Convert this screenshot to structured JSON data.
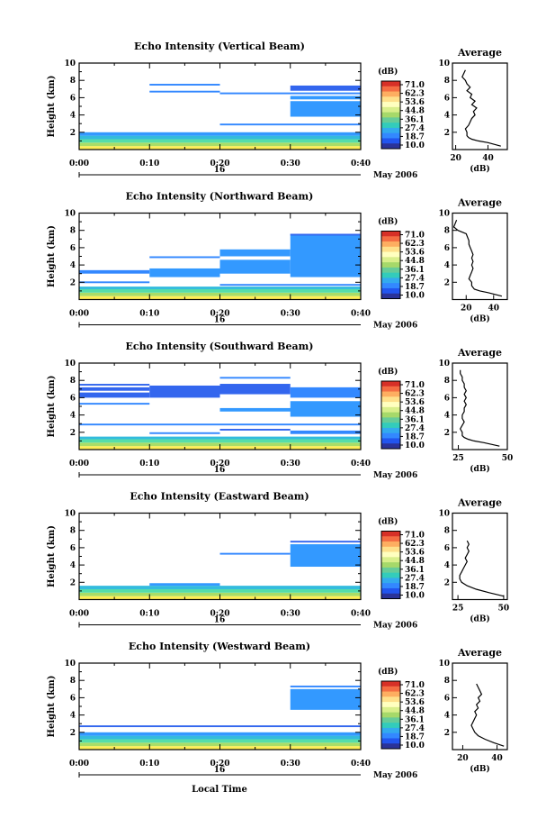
{
  "figure": {
    "xlabel_common": "Local Time",
    "colorbar": {
      "unit": "(dB)",
      "ticks": [
        "71.0",
        "62.3",
        "53.6",
        "44.8",
        "36.1",
        "27.4",
        "18.7",
        "10.0"
      ],
      "colors": [
        "#d73027",
        "#f46d43",
        "#fdae61",
        "#fee08b",
        "#ffffbf",
        "#d9ef8b",
        "#a6d96a",
        "#66cc99",
        "#33ccbb",
        "#33aaee",
        "#3388ff",
        "#2255ee",
        "#2a3399"
      ]
    },
    "time_ticks": [
      "0:00",
      "0:10",
      "0:20",
      "0:30",
      "0:40"
    ],
    "date_day": "16",
    "date_month": "May 2006"
  },
  "chart_data": [
    {
      "type": "heatmap",
      "title": "Echo Intensity (Vertical Beam)",
      "ylabel": "Height (km)",
      "xlim": [
        0,
        40
      ],
      "ylim": [
        0,
        10
      ],
      "yticks": [
        "2",
        "4",
        "6",
        "8",
        "10"
      ],
      "bands": [
        {
          "t0": 0,
          "t1": 40,
          "h0": 0.0,
          "h1": 0.4,
          "c": "#ffee55"
        },
        {
          "t0": 0,
          "t1": 40,
          "h0": 0.4,
          "h1": 0.8,
          "c": "#aadd66"
        },
        {
          "t0": 0,
          "t1": 40,
          "h0": 0.8,
          "h1": 1.2,
          "c": "#55ddaa"
        },
        {
          "t0": 0,
          "t1": 40,
          "h0": 1.2,
          "h1": 1.6,
          "c": "#33bbdd"
        },
        {
          "t0": 0,
          "t1": 40,
          "h0": 1.6,
          "h1": 2.0,
          "c": "#3399ff"
        },
        {
          "t0": 10,
          "t1": 20,
          "h0": 7.4,
          "h1": 7.6,
          "c": "#3388ff"
        },
        {
          "t0": 10,
          "t1": 20,
          "h0": 6.6,
          "h1": 6.8,
          "c": "#3388ff"
        },
        {
          "t0": 20,
          "t1": 40,
          "h0": 6.4,
          "h1": 6.6,
          "c": "#3388ff"
        },
        {
          "t0": 20,
          "t1": 40,
          "h0": 2.8,
          "h1": 3.0,
          "c": "#3388ff"
        },
        {
          "t0": 30,
          "t1": 40,
          "h0": 6.8,
          "h1": 7.4,
          "c": "#3366ee"
        },
        {
          "t0": 30,
          "t1": 40,
          "h0": 3.8,
          "h1": 5.6,
          "c": "#3399ff"
        },
        {
          "t0": 30,
          "t1": 40,
          "h0": 5.8,
          "h1": 6.2,
          "c": "#3399ff"
        }
      ],
      "profile": {
        "xticks": [
          "20",
          "40"
        ],
        "xlim": [
          18,
          52
        ],
        "xlabel": "(dB)",
        "heights": [
          0.4,
          0.8,
          1.0,
          1.2,
          1.4,
          1.6,
          2.0,
          2.4,
          2.8,
          3.2,
          3.6,
          4.0,
          4.4,
          4.8,
          5.2,
          5.6,
          6.0,
          6.4,
          6.8,
          7.2,
          7.6,
          8.0,
          8.4,
          8.8,
          9.2
        ],
        "values": [
          48,
          40,
          34,
          30,
          28,
          27,
          27,
          26,
          28,
          29,
          30,
          32,
          31,
          33,
          30,
          32,
          29,
          30,
          27,
          29,
          27,
          26,
          24,
          25,
          26
        ]
      }
    },
    {
      "type": "heatmap",
      "title": "Echo Intensity (Northward Beam)",
      "ylabel": "Height (km)",
      "xlim": [
        0,
        40
      ],
      "ylim": [
        0,
        10
      ],
      "yticks": [
        "2",
        "4",
        "6",
        "8",
        "10"
      ],
      "bands": [
        {
          "t0": 0,
          "t1": 40,
          "h0": 0.0,
          "h1": 0.4,
          "c": "#ffee55"
        },
        {
          "t0": 0,
          "t1": 40,
          "h0": 0.4,
          "h1": 0.8,
          "c": "#aadd66"
        },
        {
          "t0": 0,
          "t1": 40,
          "h0": 0.8,
          "h1": 1.2,
          "c": "#55ddaa"
        },
        {
          "t0": 0,
          "t1": 40,
          "h0": 1.2,
          "h1": 1.5,
          "c": "#33bbdd"
        },
        {
          "t0": 0,
          "t1": 10,
          "h0": 3.0,
          "h1": 3.4,
          "c": "#3388ff"
        },
        {
          "t0": 0,
          "t1": 10,
          "h0": 1.9,
          "h1": 2.1,
          "c": "#3388ff"
        },
        {
          "t0": 10,
          "t1": 20,
          "h0": 2.6,
          "h1": 3.6,
          "c": "#3399ff"
        },
        {
          "t0": 10,
          "t1": 20,
          "h0": 4.8,
          "h1": 5.0,
          "c": "#3388ff"
        },
        {
          "t0": 20,
          "t1": 30,
          "h0": 5.0,
          "h1": 5.8,
          "c": "#3399ff"
        },
        {
          "t0": 20,
          "t1": 30,
          "h0": 3.0,
          "h1": 4.6,
          "c": "#3399ff"
        },
        {
          "t0": 20,
          "t1": 40,
          "h0": 1.6,
          "h1": 1.8,
          "c": "#3388ff"
        },
        {
          "t0": 30,
          "t1": 40,
          "h0": 2.6,
          "h1": 7.6,
          "c": "#3399ff"
        },
        {
          "t0": 30,
          "t1": 40,
          "h0": 7.4,
          "h1": 7.6,
          "c": "#3366ee"
        }
      ],
      "profile": {
        "xticks": [
          "20",
          "40"
        ],
        "xlim": [
          10,
          50
        ],
        "xlabel": "(dB)",
        "heights": [
          0.4,
          0.8,
          1.0,
          1.2,
          1.4,
          1.6,
          2.0,
          2.4,
          2.8,
          3.2,
          3.6,
          4.0,
          4.4,
          4.8,
          5.2,
          5.6,
          6.0,
          6.4,
          6.8,
          7.2,
          7.6,
          8.0,
          8.4,
          9.2
        ],
        "values": [
          46,
          36,
          30,
          26,
          25,
          24,
          24,
          22,
          23,
          24,
          25,
          24,
          25,
          24,
          25,
          24,
          23,
          22,
          22,
          21,
          20,
          14,
          11,
          13
        ]
      }
    },
    {
      "type": "heatmap",
      "title": "Echo Intensity (Southward Beam)",
      "ylabel": "Height (km)",
      "xlim": [
        0,
        40
      ],
      "ylim": [
        0,
        10
      ],
      "yticks": [
        "2",
        "4",
        "6",
        "8",
        "10"
      ],
      "bands": [
        {
          "t0": 0,
          "t1": 40,
          "h0": 0.0,
          "h1": 0.4,
          "c": "#ffee55"
        },
        {
          "t0": 0,
          "t1": 40,
          "h0": 0.4,
          "h1": 0.8,
          "c": "#aadd66"
        },
        {
          "t0": 0,
          "t1": 40,
          "h0": 0.8,
          "h1": 1.2,
          "c": "#55ddaa"
        },
        {
          "t0": 0,
          "t1": 40,
          "h0": 1.2,
          "h1": 1.5,
          "c": "#33bbdd"
        },
        {
          "t0": 0,
          "t1": 10,
          "h0": 7.4,
          "h1": 7.6,
          "c": "#3366ee"
        },
        {
          "t0": 0,
          "t1": 10,
          "h0": 6.8,
          "h1": 7.2,
          "c": "#3366ee"
        },
        {
          "t0": 0,
          "t1": 10,
          "h0": 6.0,
          "h1": 6.6,
          "c": "#3366ee"
        },
        {
          "t0": 0,
          "t1": 10,
          "h0": 5.2,
          "h1": 5.4,
          "c": "#3388ff"
        },
        {
          "t0": 0,
          "t1": 40,
          "h0": 2.8,
          "h1": 3.0,
          "c": "#3388ff"
        },
        {
          "t0": 10,
          "t1": 20,
          "h0": 6.0,
          "h1": 7.4,
          "c": "#3366ee"
        },
        {
          "t0": 10,
          "t1": 20,
          "h0": 1.8,
          "h1": 2.0,
          "c": "#3388ff"
        },
        {
          "t0": 20,
          "t1": 30,
          "h0": 8.2,
          "h1": 8.4,
          "c": "#3388ff"
        },
        {
          "t0": 20,
          "t1": 30,
          "h0": 6.4,
          "h1": 7.6,
          "c": "#3366ee"
        },
        {
          "t0": 20,
          "t1": 40,
          "h0": 4.4,
          "h1": 4.8,
          "c": "#3399ff"
        },
        {
          "t0": 20,
          "t1": 30,
          "h0": 2.2,
          "h1": 2.4,
          "c": "#3366ee"
        },
        {
          "t0": 30,
          "t1": 40,
          "h0": 6.0,
          "h1": 7.2,
          "c": "#3388ff"
        },
        {
          "t0": 30,
          "t1": 40,
          "h0": 3.8,
          "h1": 5.6,
          "c": "#3399ff"
        },
        {
          "t0": 30,
          "t1": 40,
          "h0": 1.8,
          "h1": 2.2,
          "c": "#3388ff"
        }
      ],
      "profile": {
        "xticks": [
          "25",
          "50"
        ],
        "xlim": [
          22,
          50
        ],
        "xlabel": "(dB)",
        "heights": [
          0.4,
          0.8,
          1.0,
          1.2,
          1.4,
          1.6,
          2.0,
          2.4,
          2.8,
          3.2,
          3.6,
          4.0,
          4.4,
          4.8,
          5.2,
          5.6,
          6.0,
          6.4,
          6.8,
          7.2,
          7.6,
          8.0,
          8.4,
          8.8,
          9.2
        ],
        "values": [
          46,
          38,
          33,
          30,
          28,
          27,
          27,
          26,
          27,
          28,
          27,
          27,
          28,
          28,
          29,
          28,
          29,
          28,
          29,
          28,
          28,
          27,
          27,
          26,
          26
        ]
      }
    },
    {
      "type": "heatmap",
      "title": "Echo Intensity (Eastward Beam)",
      "ylabel": "Height (km)",
      "xlim": [
        0,
        40
      ],
      "ylim": [
        0,
        10
      ],
      "yticks": [
        "2",
        "4",
        "6",
        "8",
        "10"
      ],
      "bands": [
        {
          "t0": 0,
          "t1": 40,
          "h0": 0.0,
          "h1": 0.4,
          "c": "#ffee55"
        },
        {
          "t0": 0,
          "t1": 40,
          "h0": 0.4,
          "h1": 0.8,
          "c": "#aadd66"
        },
        {
          "t0": 0,
          "t1": 40,
          "h0": 0.8,
          "h1": 1.2,
          "c": "#55ddaa"
        },
        {
          "t0": 0,
          "t1": 40,
          "h0": 1.2,
          "h1": 1.6,
          "c": "#33bbdd"
        },
        {
          "t0": 10,
          "t1": 20,
          "h0": 1.6,
          "h1": 1.9,
          "c": "#3399ff"
        },
        {
          "t0": 20,
          "t1": 30,
          "h0": 5.2,
          "h1": 5.4,
          "c": "#3388ff"
        },
        {
          "t0": 30,
          "t1": 40,
          "h0": 3.8,
          "h1": 6.4,
          "c": "#3399ff"
        },
        {
          "t0": 30,
          "t1": 40,
          "h0": 6.6,
          "h1": 6.8,
          "c": "#3366ee"
        }
      ],
      "profile": {
        "xticks": [
          "25",
          "50"
        ],
        "xlim": [
          22,
          52
        ],
        "xlabel": "(dB)",
        "heights": [
          0.4,
          0.8,
          1.2,
          1.6,
          2.0,
          2.4,
          2.8,
          3.2,
          3.6,
          4.0,
          4.4,
          4.8,
          5.2,
          5.6,
          6.0,
          6.4,
          6.8
        ],
        "values": [
          50,
          42,
          35,
          30,
          27,
          26,
          26,
          27,
          28,
          29,
          30,
          29,
          30,
          31,
          30,
          31,
          30
        ]
      }
    },
    {
      "type": "heatmap",
      "title": "Echo Intensity (Westward Beam)",
      "ylabel": "Height (km)",
      "xlim": [
        0,
        40
      ],
      "ylim": [
        0,
        10
      ],
      "yticks": [
        "2",
        "4",
        "6",
        "8",
        "10"
      ],
      "bands": [
        {
          "t0": 0,
          "t1": 40,
          "h0": 0.0,
          "h1": 0.4,
          "c": "#ffee55"
        },
        {
          "t0": 0,
          "t1": 40,
          "h0": 0.4,
          "h1": 0.8,
          "c": "#aadd66"
        },
        {
          "t0": 0,
          "t1": 40,
          "h0": 0.8,
          "h1": 1.2,
          "c": "#55ddaa"
        },
        {
          "t0": 0,
          "t1": 40,
          "h0": 1.2,
          "h1": 1.6,
          "c": "#33bbdd"
        },
        {
          "t0": 0,
          "t1": 40,
          "h0": 1.6,
          "h1": 2.0,
          "c": "#3399ff"
        },
        {
          "t0": 0,
          "t1": 40,
          "h0": 2.6,
          "h1": 2.8,
          "c": "#3366ee"
        },
        {
          "t0": 30,
          "t1": 40,
          "h0": 4.6,
          "h1": 7.0,
          "c": "#3399ff"
        },
        {
          "t0": 30,
          "t1": 40,
          "h0": 7.2,
          "h1": 7.4,
          "c": "#3388ff"
        }
      ],
      "profile": {
        "xticks": [
          "20",
          "40"
        ],
        "xlim": [
          14,
          46
        ],
        "xlabel": "(dB)",
        "heights": [
          0.4,
          0.8,
          1.2,
          1.6,
          2.0,
          2.4,
          2.8,
          3.2,
          3.6,
          4.0,
          4.4,
          4.8,
          5.2,
          5.6,
          6.0,
          6.4,
          6.8,
          7.2,
          7.6
        ],
        "values": [
          44,
          38,
          33,
          29,
          27,
          26,
          25,
          26,
          27,
          28,
          27,
          29,
          28,
          30,
          29,
          31,
          30,
          29,
          28
        ]
      }
    }
  ]
}
